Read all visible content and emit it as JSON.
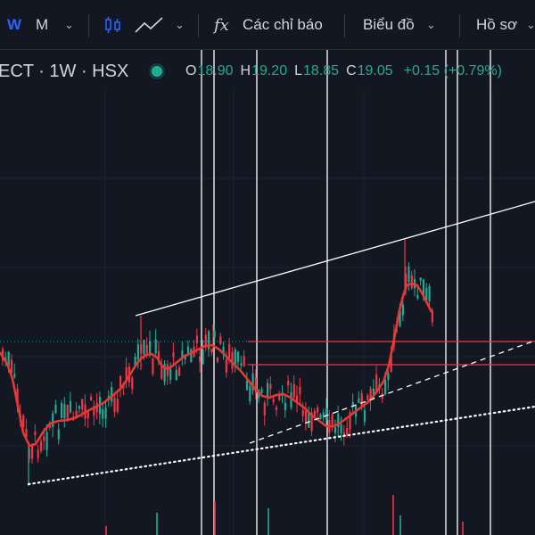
{
  "toolbar": {
    "interval_w": "W",
    "interval_m": "M",
    "indicators_label": "Các chỉ báo",
    "fx_glyph": "fx",
    "chart_label": "Biểu đồ",
    "profile_label": "Hồ sơ"
  },
  "legend": {
    "symbol": "ECT · 1W · HSX",
    "open_key": "O",
    "open": "18.90",
    "high_key": "H",
    "high": "19.20",
    "low_key": "L",
    "low": "18.85",
    "close_key": "C",
    "close": "19.05",
    "change": "+0.15 (+0.79%)"
  },
  "colors": {
    "background": "#131722",
    "up": "#22ab94",
    "down": "#f23645",
    "ma": "#e53935",
    "lines": "#ffffff",
    "levels": "#f23645",
    "status_dot": "#22ab94"
  },
  "chart_data": {
    "type": "candlestick",
    "ma_line": [
      [
        0,
        395
      ],
      [
        8,
        408
      ],
      [
        14,
        425
      ],
      [
        20,
        455
      ],
      [
        26,
        485
      ],
      [
        33,
        500
      ],
      [
        40,
        498
      ],
      [
        48,
        485
      ],
      [
        56,
        475
      ],
      [
        66,
        472
      ],
      [
        76,
        471
      ],
      [
        86,
        468
      ],
      [
        96,
        462
      ],
      [
        106,
        457
      ],
      [
        116,
        452
      ],
      [
        126,
        444
      ],
      [
        136,
        435
      ],
      [
        146,
        420
      ],
      [
        152,
        410
      ],
      [
        158,
        402
      ],
      [
        164,
        398
      ],
      [
        170,
        397
      ],
      [
        176,
        401
      ],
      [
        182,
        411
      ],
      [
        188,
        414
      ],
      [
        194,
        410
      ],
      [
        200,
        405
      ],
      [
        206,
        400
      ],
      [
        214,
        396
      ],
      [
        222,
        392
      ],
      [
        230,
        388
      ],
      [
        238,
        387
      ],
      [
        246,
        392
      ],
      [
        254,
        400
      ],
      [
        262,
        408
      ],
      [
        270,
        416
      ],
      [
        278,
        426
      ],
      [
        286,
        436
      ],
      [
        294,
        444
      ],
      [
        302,
        446
      ],
      [
        310,
        443
      ],
      [
        318,
        442
      ],
      [
        326,
        446
      ],
      [
        334,
        452
      ],
      [
        342,
        458
      ],
      [
        350,
        466
      ],
      [
        358,
        472
      ],
      [
        366,
        478
      ],
      [
        374,
        478
      ],
      [
        382,
        474
      ],
      [
        390,
        468
      ],
      [
        398,
        462
      ],
      [
        406,
        456
      ],
      [
        414,
        450
      ],
      [
        422,
        440
      ],
      [
        430,
        428
      ],
      [
        436,
        410
      ],
      [
        440,
        390
      ],
      [
        444,
        370
      ],
      [
        448,
        348
      ],
      [
        452,
        332
      ],
      [
        456,
        320
      ],
      [
        462,
        318
      ],
      [
        468,
        320
      ],
      [
        474,
        330
      ],
      [
        480,
        342
      ],
      [
        484,
        350
      ]
    ],
    "trendlines": [
      {
        "style": "solid",
        "from": [
          152,
          354
        ],
        "to": [
          600,
          226
        ]
      },
      {
        "style": "dashed",
        "from": [
          280,
          497
        ],
        "to": [
          600,
          382
        ]
      },
      {
        "style": "dotted",
        "from": [
          32,
          543
        ],
        "to": [
          600,
          456
        ]
      }
    ],
    "horizontal_levels": [
      {
        "style": "solid",
        "from_x": 278,
        "to_x": 600,
        "y": 383
      },
      {
        "style": "dotted",
        "from_x": 0,
        "to_x": 278,
        "y": 383
      },
      {
        "style": "solid",
        "from_x": 278,
        "to_x": 600,
        "y": 409
      }
    ],
    "vertical_lines_x": [
      226,
      240,
      288,
      367,
      500,
      513,
      550
    ],
    "volume_bars_x": [
      118,
      175,
      240,
      300,
      440,
      448,
      518
    ]
  }
}
